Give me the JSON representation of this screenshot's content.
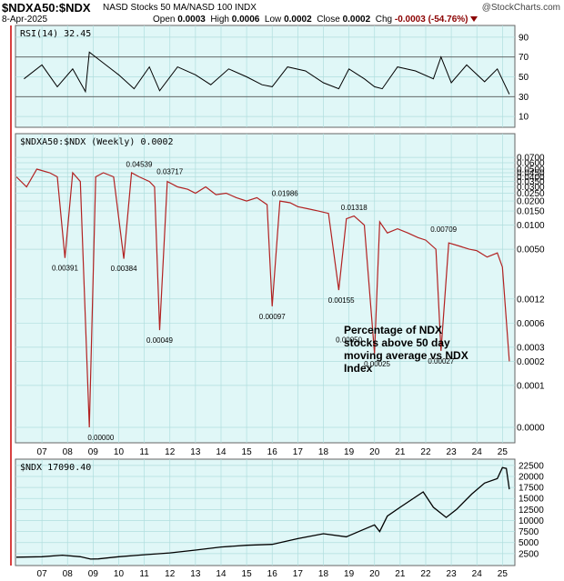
{
  "header": {
    "symbol": "$NDXA50:$NDX",
    "description": "NASD Stocks 50 MA/NASD 100 INDX",
    "date": "8-Apr-2025",
    "brand": "@StockCharts.com",
    "open_label": "Open",
    "open": "0.0003",
    "high_label": "High",
    "high": "0.0006",
    "low_label": "Low",
    "low": "0.0002",
    "close_label": "Close",
    "close": "0.0002",
    "chg_label": "Chg",
    "chg": "-0.0003 (-54.76%)"
  },
  "colors": {
    "panel_bg": "#e0f7f7",
    "grid": "#b0dede",
    "price_line": "#b22222",
    "rsi_line": "#000000",
    "ndx_line": "#000000",
    "marker": "#cc0000"
  },
  "chart_data": [
    {
      "type": "line",
      "title": "RSI(14) 32.45",
      "ylim": [
        0,
        100
      ],
      "ticks": [
        10,
        30,
        50,
        70,
        90
      ],
      "reference_lines": [
        30,
        70
      ],
      "x": [
        2006.3,
        2007.0,
        2007.6,
        2008.2,
        2008.7,
        2008.85,
        2009.3,
        2010.0,
        2010.6,
        2011.2,
        2011.6,
        2012.3,
        2013.0,
        2013.6,
        2014.3,
        2015.0,
        2015.6,
        2016.0,
        2016.6,
        2017.3,
        2018.0,
        2018.6,
        2019.0,
        2019.6,
        2020.0,
        2020.3,
        2020.9,
        2021.6,
        2022.3,
        2022.6,
        2023.0,
        2023.6,
        2024.3,
        2024.8,
        2025.27
      ],
      "values": [
        48,
        62,
        40,
        58,
        35,
        75,
        66,
        52,
        38,
        60,
        36,
        60,
        52,
        42,
        58,
        50,
        42,
        40,
        60,
        56,
        44,
        38,
        58,
        48,
        40,
        38,
        60,
        56,
        48,
        70,
        44,
        62,
        45,
        58,
        32.45
      ]
    },
    {
      "type": "line",
      "title": "$NDXA50:$NDX (Weekly) 0.0002",
      "ylog": true,
      "ticks": [
        "0.0700",
        "0.0600",
        "0.0500",
        "0.0450",
        "0.0400",
        "0.0350",
        "0.0300",
        "0.0250",
        "0.0200",
        "0.0150",
        "0.0100",
        "0.0050",
        "0.0012",
        "0.0006",
        "0.0003",
        "0.0002",
        "0.0001",
        "0.0000"
      ],
      "annotation": "Percentage of NDX stocks above 50 day moving average vs NDX Index",
      "point_labels": [
        {
          "x": 2007.9,
          "text": "0.00391"
        },
        {
          "x": 2009.3,
          "text": "0.00000"
        },
        {
          "x": 2010.2,
          "text": "0.00384"
        },
        {
          "x": 2010.8,
          "text": "0.04539"
        },
        {
          "x": 2011.6,
          "text": "0.00049"
        },
        {
          "x": 2012.0,
          "text": "0.03717"
        },
        {
          "x": 2016.0,
          "text": "0.00097"
        },
        {
          "x": 2016.5,
          "text": "0.01986"
        },
        {
          "x": 2018.7,
          "text": "0.00155"
        },
        {
          "x": 2019.2,
          "text": "0.01318"
        },
        {
          "x": 2019.0,
          "text": "0.00050"
        },
        {
          "x": 2020.1,
          "text": "0.00025"
        },
        {
          "x": 2022.7,
          "text": "0.00709"
        },
        {
          "x": 2022.6,
          "text": "0.00027"
        }
      ],
      "x": [
        2006.0,
        2006.4,
        2006.8,
        2007.3,
        2007.6,
        2007.9,
        2008.2,
        2008.5,
        2008.85,
        2009.1,
        2009.4,
        2009.8,
        2010.2,
        2010.5,
        2010.8,
        2011.2,
        2011.4,
        2011.6,
        2011.9,
        2012.3,
        2012.7,
        2013.0,
        2013.4,
        2013.8,
        2014.2,
        2014.6,
        2015.0,
        2015.4,
        2015.8,
        2016.0,
        2016.3,
        2016.7,
        2017.0,
        2017.4,
        2017.8,
        2018.2,
        2018.6,
        2018.9,
        2019.2,
        2019.6,
        2020.0,
        2020.2,
        2020.5,
        2020.9,
        2021.3,
        2021.7,
        2022.0,
        2022.4,
        2022.6,
        2022.9,
        2023.3,
        2023.7,
        2024.0,
        2024.4,
        2024.8,
        2025.0,
        2025.27
      ],
      "values": [
        0.04,
        0.03,
        0.05,
        0.045,
        0.04,
        0.0039,
        0.045,
        0.035,
        0.0,
        0.04,
        0.045,
        0.04,
        0.0038,
        0.045,
        0.04,
        0.035,
        0.03,
        0.00049,
        0.035,
        0.03,
        0.028,
        0.025,
        0.03,
        0.024,
        0.025,
        0.022,
        0.02,
        0.022,
        0.018,
        0.00097,
        0.02,
        0.019,
        0.017,
        0.016,
        0.015,
        0.014,
        0.00155,
        0.012,
        0.013,
        0.01,
        0.00025,
        0.011,
        0.008,
        0.009,
        0.008,
        0.007,
        0.0065,
        0.005,
        0.00027,
        0.006,
        0.0055,
        0.005,
        0.0048,
        0.004,
        0.0045,
        0.003,
        0.0002
      ]
    },
    {
      "type": "line",
      "title": "$NDX 17090.40",
      "ylim": [
        0,
        23500
      ],
      "ticks": [
        2500,
        5000,
        7500,
        10000,
        12500,
        15000,
        17500,
        20000,
        22500
      ],
      "x": [
        2006.0,
        2007.0,
        2007.8,
        2008.5,
        2008.9,
        2009.2,
        2010.0,
        2011.0,
        2012.0,
        2013.0,
        2014.0,
        2015.0,
        2016.0,
        2017.0,
        2018.0,
        2018.9,
        2019.5,
        2020.0,
        2020.2,
        2020.5,
        2021.0,
        2021.9,
        2022.3,
        2022.8,
        2023.2,
        2023.8,
        2024.3,
        2024.8,
        2025.0,
        2025.15,
        2025.27
      ],
      "values": [
        1700,
        1800,
        2150,
        1800,
        1250,
        1300,
        1800,
        2250,
        2650,
        3300,
        4000,
        4400,
        4600,
        5900,
        7000,
        6300,
        7800,
        9000,
        7500,
        11000,
        13000,
        16500,
        13000,
        10700,
        12500,
        16000,
        18500,
        19500,
        22000,
        21800,
        17090.4
      ]
    }
  ],
  "x_axis": {
    "tick_labels": [
      "07",
      "08",
      "09",
      "10",
      "11",
      "12",
      "13",
      "14",
      "15",
      "16",
      "17",
      "18",
      "19",
      "20",
      "21",
      "22",
      "23",
      "24",
      "25"
    ]
  },
  "rsi_ticks_text": [
    "90",
    "70",
    "50",
    "30",
    "10"
  ],
  "price_ticks_text": [
    "0.0700",
    "0.0600",
    "0.0500",
    "0.0450",
    "0.0400",
    "0.0350",
    "0.0300",
    "0.0250",
    "0.0200",
    "0.0150",
    "0.0100",
    "0.0050",
    "0.0012",
    "0.0006",
    "0.0003",
    "0.0002",
    "0.0001",
    "0.0000"
  ],
  "ndx_ticks_text": [
    "22500",
    "20000",
    "17500",
    "15000",
    "12500",
    "10000",
    "7500",
    "5000",
    "2500"
  ]
}
